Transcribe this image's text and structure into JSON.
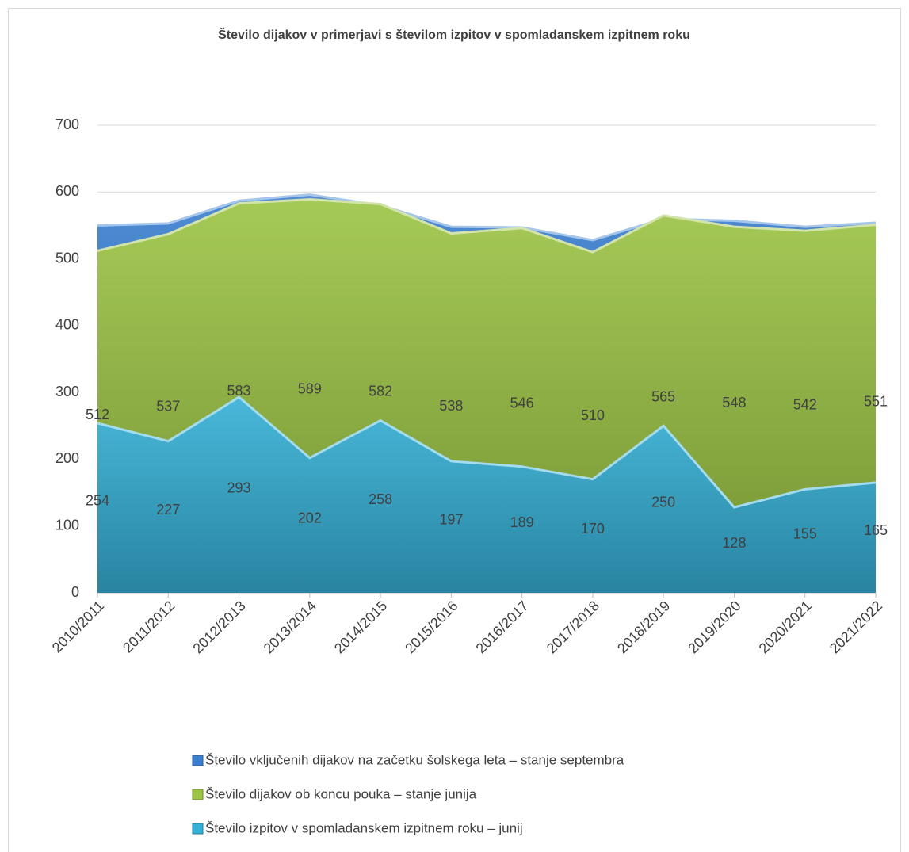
{
  "chart_data": {
    "type": "area",
    "title": "Število dijakov v primerjavi s številom izpitov v spomladanskem  izpitnem roku",
    "categories": [
      "2010/2011",
      "2011/2012",
      "2012/2013",
      "2013/2014",
      "2014/2015",
      "2015/2016",
      "2016/2017",
      "2017/2018",
      "2018/2019",
      "2019/2020",
      "2020/2021",
      "2021/2022"
    ],
    "series": [
      {
        "name": "Število vključenih dijakov na začetku šolskega leta – stanje septembra",
        "color": "#3a7fd0",
        "values": [
          550,
          553,
          587,
          596,
          580,
          548,
          547,
          528,
          560,
          557,
          548,
          554
        ]
      },
      {
        "name": "Število dijakov ob koncu pouka – stanje junija",
        "color": "#9cc444",
        "values": [
          512,
          537,
          583,
          589,
          582,
          538,
          546,
          510,
          565,
          548,
          542,
          551
        ],
        "labels": true
      },
      {
        "name": "Število izpitov v spomladanskem izpitnem roku – junij",
        "color": "#35b0d6",
        "values": [
          254,
          227,
          293,
          202,
          258,
          197,
          189,
          170,
          250,
          128,
          155,
          165
        ],
        "labels": true
      }
    ],
    "ylim": [
      0,
      700
    ],
    "yticks": [
      0,
      100,
      200,
      300,
      400,
      500,
      600,
      700
    ],
    "grid": true,
    "legend": "bottom"
  }
}
